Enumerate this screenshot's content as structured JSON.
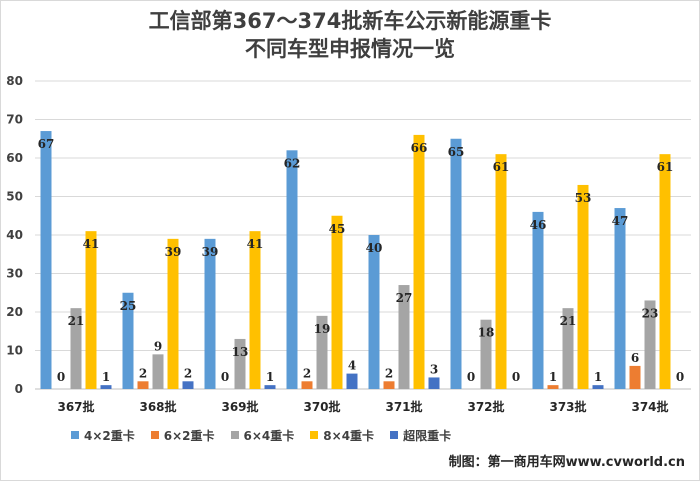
{
  "chart_data": {
    "type": "bar",
    "title": [
      "工信部第367～374批新车公示新能源重卡",
      "不同车型申报情况一览"
    ],
    "categories": [
      "367批",
      "368批",
      "369批",
      "370批",
      "371批",
      "372批",
      "373批",
      "374批"
    ],
    "series": [
      {
        "name": "4×2重卡",
        "color": "#5b9bd5",
        "values": [
          67,
          25,
          39,
          62,
          40,
          65,
          46,
          47
        ]
      },
      {
        "name": "6×2重卡",
        "color": "#ed7d31",
        "values": [
          0,
          2,
          0,
          2,
          2,
          0,
          1,
          6
        ]
      },
      {
        "name": "6×4重卡",
        "color": "#a5a5a5",
        "values": [
          21,
          9,
          13,
          19,
          27,
          18,
          21,
          23
        ]
      },
      {
        "name": "8×4重卡",
        "color": "#ffc000",
        "values": [
          41,
          39,
          41,
          45,
          66,
          61,
          53,
          61
        ]
      },
      {
        "name": "超限重卡",
        "color": "#4472c4",
        "values": [
          1,
          2,
          1,
          4,
          3,
          0,
          1,
          0
        ]
      }
    ],
    "ylim": [
      0,
      80
    ],
    "yticks": [
      0,
      10,
      20,
      30,
      40,
      50,
      60,
      70,
      80
    ],
    "grid": true,
    "legend": "bottom-left"
  },
  "credit": "制图：第一商用车网www.cvworld.cn"
}
